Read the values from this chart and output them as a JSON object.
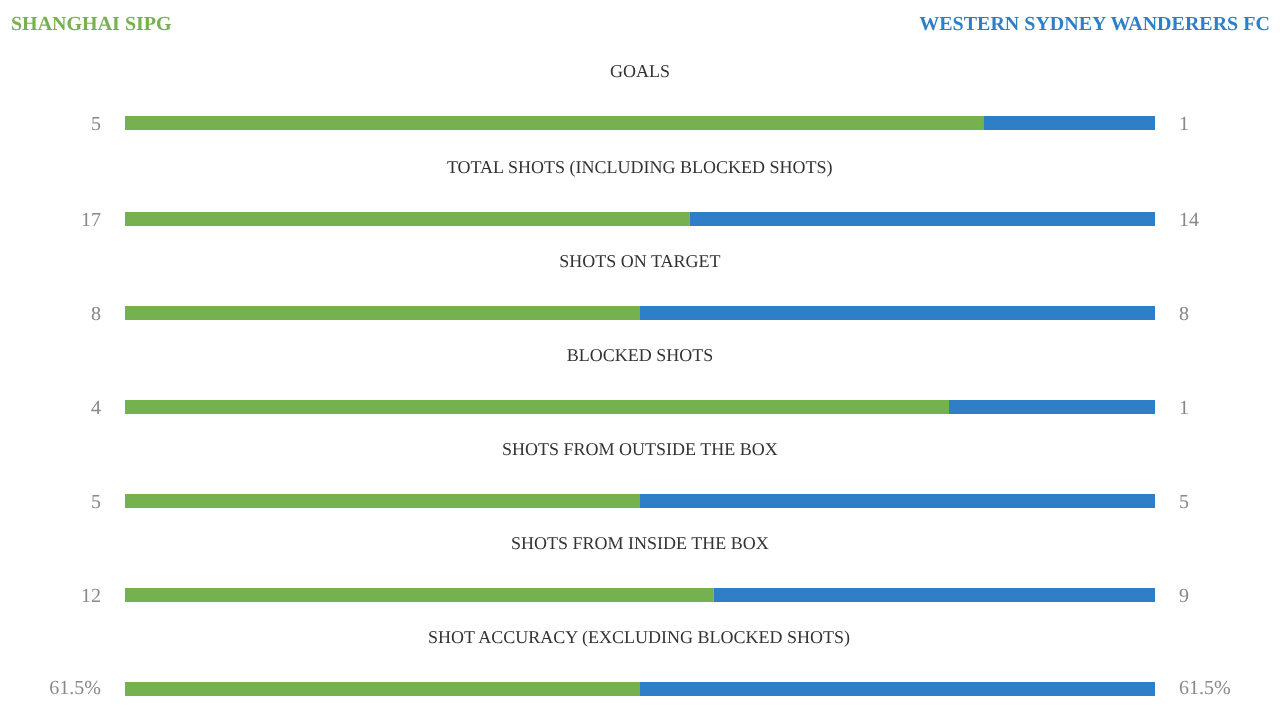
{
  "chart_data": [
    {
      "type": "bar",
      "orientation": "horizontal",
      "stacked": true,
      "legend": "top",
      "title": "GOALS",
      "categories": [
        null
      ],
      "xlim": [
        0,
        6
      ],
      "series": [
        {
          "name": "SHANGHAI SIPG",
          "color": "#76b14f",
          "values": [
            5
          ],
          "value_labels": [
            "5"
          ]
        },
        {
          "name": "WESTERN SYDNEY WANDERERS FC",
          "color": "#2e7fc8",
          "values": [
            1
          ],
          "value_labels": [
            "1"
          ]
        }
      ]
    },
    {
      "type": "bar",
      "orientation": "horizontal",
      "stacked": true,
      "title": "TOTAL SHOTS (INCLUDING BLOCKED SHOTS)",
      "categories": [
        null
      ],
      "xlim": [
        0,
        31
      ],
      "series": [
        {
          "color": "#76b14f",
          "values": [
            17
          ],
          "value_labels": [
            "17"
          ]
        },
        {
          "color": "#2e7fc8",
          "values": [
            14
          ],
          "value_labels": [
            "14"
          ]
        }
      ]
    },
    {
      "type": "bar",
      "orientation": "horizontal",
      "stacked": true,
      "title": "SHOTS ON TARGET",
      "categories": [
        null
      ],
      "xlim": [
        0,
        16
      ],
      "series": [
        {
          "color": "#76b14f",
          "values": [
            8
          ],
          "value_labels": [
            "8"
          ]
        },
        {
          "color": "#2e7fc8",
          "values": [
            8
          ],
          "value_labels": [
            "8"
          ]
        }
      ]
    },
    {
      "type": "bar",
      "orientation": "horizontal",
      "stacked": true,
      "title": "BLOCKED SHOTS",
      "categories": [
        null
      ],
      "xlim": [
        0,
        5
      ],
      "series": [
        {
          "color": "#76b14f",
          "values": [
            4
          ],
          "value_labels": [
            "4"
          ]
        },
        {
          "color": "#2e7fc8",
          "values": [
            1
          ],
          "value_labels": [
            "1"
          ]
        }
      ]
    },
    {
      "type": "bar",
      "orientation": "horizontal",
      "stacked": true,
      "title": "SHOTS FROM OUTSIDE THE BOX",
      "categories": [
        null
      ],
      "xlim": [
        0,
        10
      ],
      "series": [
        {
          "color": "#76b14f",
          "values": [
            5
          ],
          "value_labels": [
            "5"
          ]
        },
        {
          "color": "#2e7fc8",
          "values": [
            5
          ],
          "value_labels": [
            "5"
          ]
        }
      ]
    },
    {
      "type": "bar",
      "orientation": "horizontal",
      "stacked": true,
      "title": "SHOTS FROM INSIDE THE BOX",
      "categories": [
        null
      ],
      "xlim": [
        0,
        21
      ],
      "series": [
        {
          "color": "#76b14f",
          "values": [
            12
          ],
          "value_labels": [
            "12"
          ]
        },
        {
          "color": "#2e7fc8",
          "values": [
            9
          ],
          "value_labels": [
            "9"
          ]
        }
      ]
    },
    {
      "type": "bar",
      "orientation": "horizontal",
      "stacked": true,
      "title": "SHOT ACCURACY (EXCLUDING BLOCKED SHOTS)",
      "categories": [
        null
      ],
      "xlim": [
        0,
        123
      ],
      "series": [
        {
          "color": "#76b14f",
          "values": [
            61.5
          ],
          "value_labels": [
            "61.5%"
          ]
        },
        {
          "color": "#2e7fc8",
          "values": [
            61.5
          ],
          "value_labels": [
            "61.5%"
          ]
        }
      ]
    }
  ]
}
